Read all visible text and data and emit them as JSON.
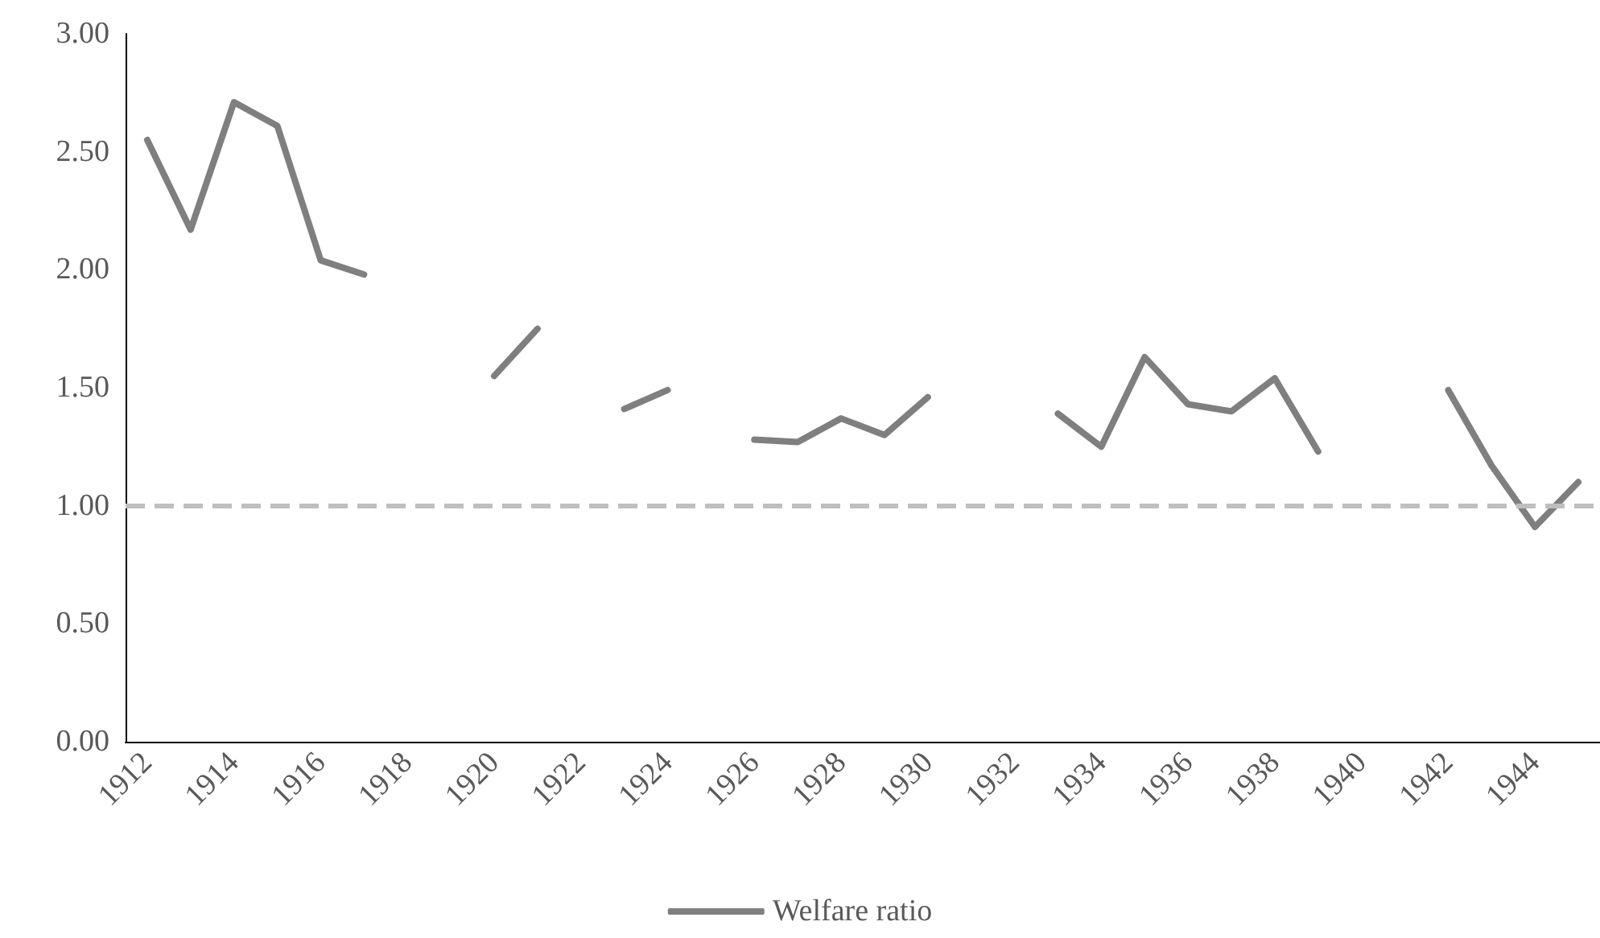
{
  "chart_data": {
    "type": "line",
    "categories": [
      "1912",
      null,
      "1914",
      null,
      "1916",
      null,
      "1918",
      null,
      "1920",
      null,
      "1922",
      null,
      "1924",
      null,
      "1926",
      null,
      "1928",
      null,
      "1930",
      null,
      "1932",
      null,
      "1934",
      null,
      "1936",
      null,
      "1938",
      null,
      "1940",
      null,
      "1942",
      null,
      "1944",
      null
    ],
    "series": [
      {
        "name": "Welfare ratio",
        "color": "#7f7f7f",
        "values": [
          2.55,
          2.17,
          2.71,
          2.61,
          2.04,
          1.98,
          null,
          null,
          1.55,
          1.75,
          null,
          1.41,
          1.49,
          null,
          1.28,
          1.27,
          1.37,
          1.3,
          1.46,
          null,
          null,
          1.39,
          1.25,
          1.63,
          1.43,
          1.4,
          1.54,
          1.23,
          null,
          null,
          1.49,
          1.17,
          0.91,
          1.1
        ]
      }
    ],
    "ylim": [
      0,
      3
    ],
    "yticks": [
      {
        "value": 0,
        "label": "0.00"
      },
      {
        "value": 0.5,
        "label": "0.50"
      },
      {
        "value": 1,
        "label": "1.00"
      },
      {
        "value": 1.5,
        "label": "1.50"
      },
      {
        "value": 2,
        "label": "2.00"
      },
      {
        "value": 2.5,
        "label": "2.50"
      },
      {
        "value": 3,
        "label": "3.00"
      }
    ],
    "ref_lines": [
      {
        "axis": "y",
        "value": 1,
        "color": "#bfbfbf",
        "line_style": "dashed"
      }
    ],
    "grid": false,
    "legend": "bottom",
    "marker": "none",
    "line_style": "solid"
  }
}
